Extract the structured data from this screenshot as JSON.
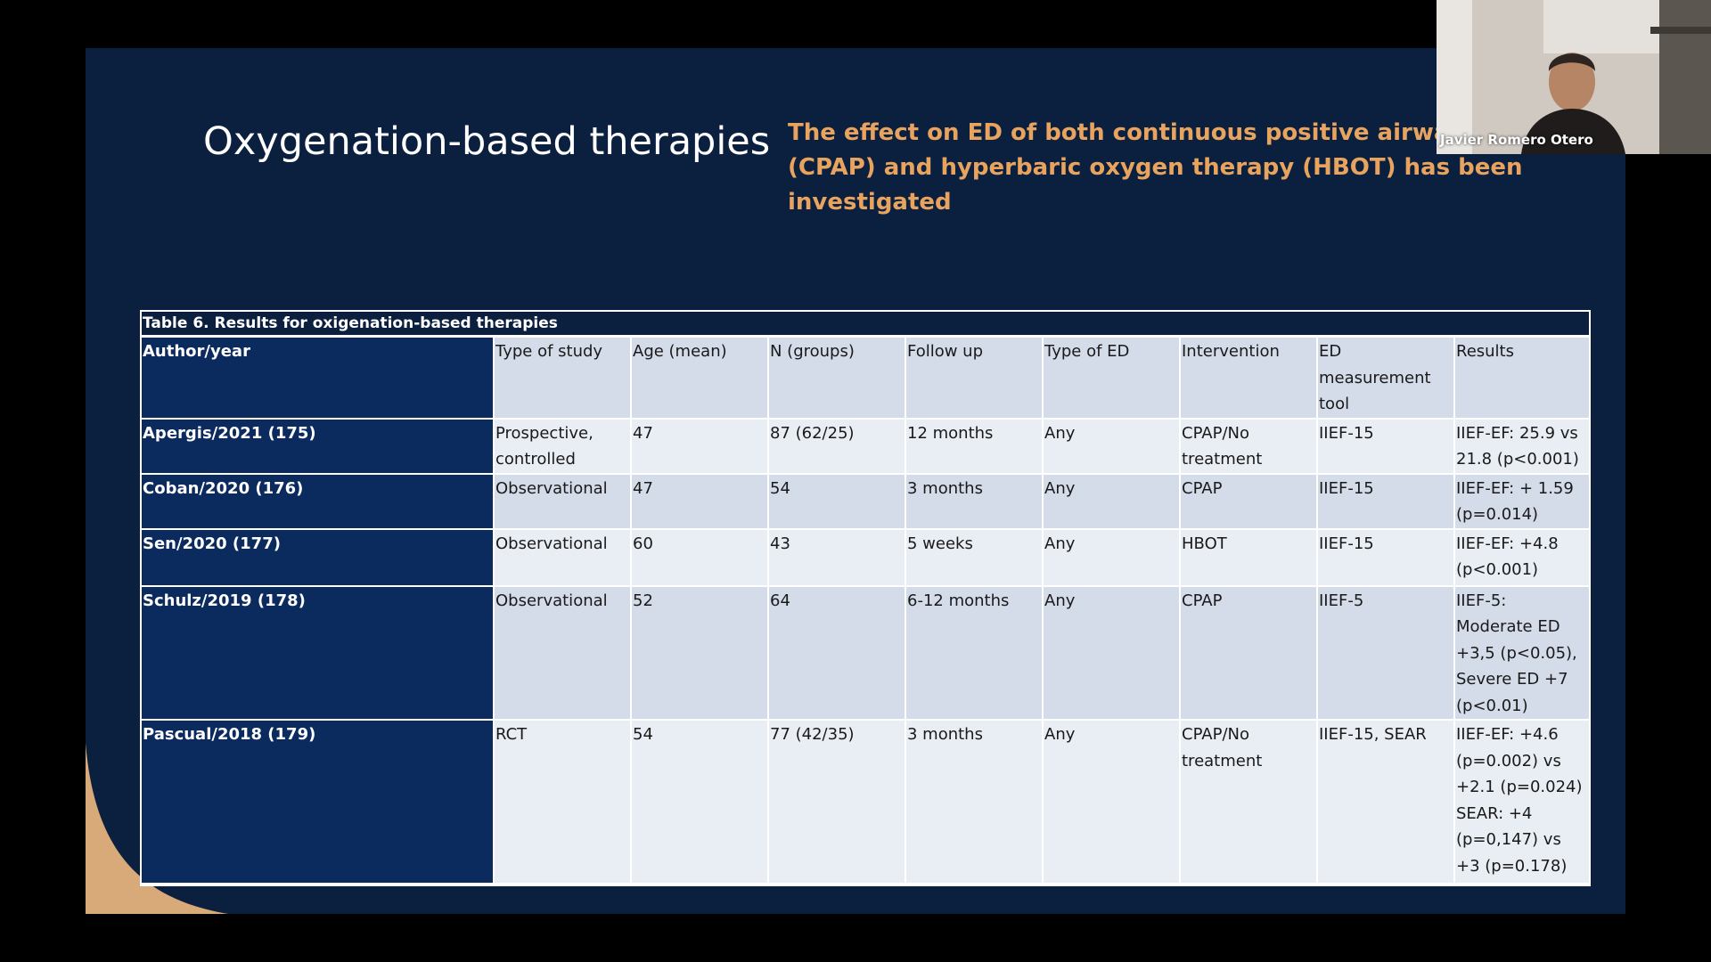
{
  "slide": {
    "title": "Oxygenation-based therapies",
    "subtitle": "The effect on ED of both continuous positive airway pr (CPAP) and hyperbaric oxygen therapy (HBOT) has been investigated",
    "colors": {
      "background": "#0b1f3f",
      "title": "#ffffff",
      "subtitle": "#e8a45e",
      "first_column": "#0b2a5e",
      "row_light": "#e9edf4",
      "row_dark": "#d4dbe9",
      "corner_accent": "#d8a979"
    }
  },
  "table": {
    "caption": "Table 6. Results for oxigenation-based therapies",
    "headers": [
      "Author/year",
      "Type of study",
      "Age (mean)",
      "N (groups)",
      "Follow up",
      "Type of ED",
      "Intervention",
      "ED measurement tool",
      "Results"
    ],
    "rows": [
      [
        "Apergis/2021 (175)",
        "Prospective, controlled",
        "47",
        "87 (62/25)",
        "12 months",
        "Any",
        "CPAP/No treatment",
        "IIEF-15",
        "IIEF-EF: 25.9 vs 21.8 (p<0.001)"
      ],
      [
        "Coban/2020 (176)",
        "Observational",
        "47",
        "54",
        "3 months",
        "Any",
        "CPAP",
        "IIEF-15",
        "IIEF-EF: + 1.59 (p=0.014)"
      ],
      [
        "Sen/2020 (177)",
        "Observational",
        "60",
        "43",
        "5 weeks",
        "Any",
        "HBOT",
        "IIEF-15",
        "IIEF-EF: +4.8 (p<0.001)"
      ],
      [
        "Schulz/2019 (178)",
        "Observational",
        "52",
        "64",
        "6-12 months",
        "Any",
        "CPAP",
        "IIEF-5",
        "IIEF-5: Moderate ED +3,5 (p<0.05), Severe ED +7 (p<0.01)"
      ],
      [
        "Pascual/2018 (179)",
        "RCT",
        "54",
        "77 (42/35)",
        "3 months",
        "Any",
        "CPAP/No treatment",
        "IIEF-15, SEAR",
        "IIEF-EF: +4.6 (p=0.002) vs +2.1 (p=0.024) SEAR: +4 (p=0,147) vs +3 (p=0.178)"
      ]
    ]
  },
  "webcam": {
    "participant_name": "Javier Romero Otero"
  }
}
